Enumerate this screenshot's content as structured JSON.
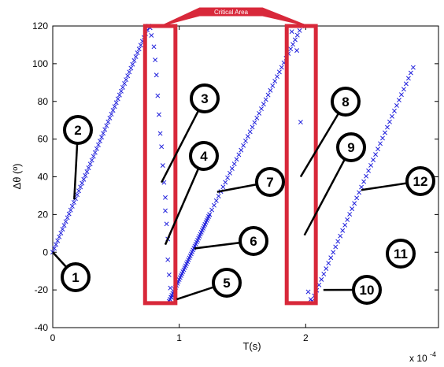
{
  "chart_data": {
    "type": "scatter",
    "title": "",
    "xlabel": "T(s)",
    "ylabel": "Δθ (º)",
    "x_exponent_label": "x 10",
    "x_exponent_power": "-4",
    "xlim": [
      0,
      3.05
    ],
    "ylim": [
      -40,
      120
    ],
    "xticks": [
      0,
      1,
      2
    ],
    "xtick_labels": [
      "0",
      "1",
      "2"
    ],
    "yticks": [
      -40,
      -20,
      0,
      20,
      40,
      60,
      80,
      100,
      120
    ],
    "ytick_labels": [
      "-40",
      "-20",
      "0",
      "20",
      "40",
      "60",
      "80",
      "100",
      "120"
    ],
    "grid": false,
    "marker": "x",
    "marker_color": "#1f1fdc",
    "series": [
      {
        "segment": "rise-1",
        "x_start": 0.0,
        "y_start": 0,
        "x_end": 0.76,
        "y_end": 120,
        "points": 60
      },
      {
        "segment": "drop-1",
        "points_xy": [
          [
            0.77,
            119
          ],
          [
            0.78,
            115
          ],
          [
            0.8,
            109
          ],
          [
            0.81,
            102
          ],
          [
            0.82,
            94
          ],
          [
            0.83,
            83
          ],
          [
            0.84,
            73
          ],
          [
            0.85,
            63
          ],
          [
            0.86,
            56
          ],
          [
            0.87,
            46
          ],
          [
            0.88,
            37
          ],
          [
            0.89,
            29
          ],
          [
            0.89,
            22
          ],
          [
            0.9,
            15
          ],
          [
            0.91,
            7
          ],
          [
            0.91,
            -4
          ],
          [
            0.92,
            -12
          ],
          [
            0.93,
            -19
          ],
          [
            0.94,
            -24
          ]
        ]
      },
      {
        "segment": "rise-2",
        "x_start": 0.92,
        "y_start": -26,
        "x_end": 1.24,
        "y_end": 20,
        "points": 45
      },
      {
        "segment": "rise-3",
        "x_start": 1.24,
        "y_start": 20,
        "x_end": 1.97,
        "y_end": 120,
        "points": 42
      },
      {
        "segment": "drop-2",
        "points_xy": [
          [
            1.89,
            117
          ],
          [
            1.93,
            107
          ],
          [
            1.96,
            69
          ],
          [
            2.02,
            -21
          ],
          [
            2.04,
            -25
          ]
        ]
      },
      {
        "segment": "rise-4",
        "x_start": 2.05,
        "y_start": -26,
        "x_end": 2.85,
        "y_end": 98,
        "points": 44
      }
    ],
    "critical_areas": [
      {
        "label": "Critical Area",
        "x0": 0.73,
        "x1": 0.97,
        "y0": -27,
        "y1": 120
      },
      {
        "label": "Critical Area",
        "x0": 1.85,
        "x1": 2.08,
        "y0": -27,
        "y1": 120
      }
    ],
    "critical_area_label": "Critical Area",
    "highlight_color": "#d8283a",
    "callouts": [
      {
        "label": "1",
        "target": [
          0.0,
          0
        ]
      },
      {
        "label": "2",
        "target": [
          0.17,
          28
        ]
      },
      {
        "label": "3",
        "target": [
          0.86,
          37
        ]
      },
      {
        "label": "4",
        "target": [
          0.89,
          4
        ]
      },
      {
        "label": "5",
        "target": [
          0.98,
          -25
        ]
      },
      {
        "label": "6",
        "target": [
          1.12,
          2
        ]
      },
      {
        "label": "7",
        "target": [
          1.3,
          32
        ]
      },
      {
        "label": "8",
        "target": [
          1.96,
          40
        ]
      },
      {
        "label": "9",
        "target": [
          1.99,
          9
        ]
      },
      {
        "label": "10",
        "target": [
          2.14,
          -20
        ]
      },
      {
        "label": "11",
        "target": [
          2.8,
          0
        ]
      },
      {
        "label": "12",
        "target": [
          2.44,
          33
        ]
      }
    ]
  }
}
